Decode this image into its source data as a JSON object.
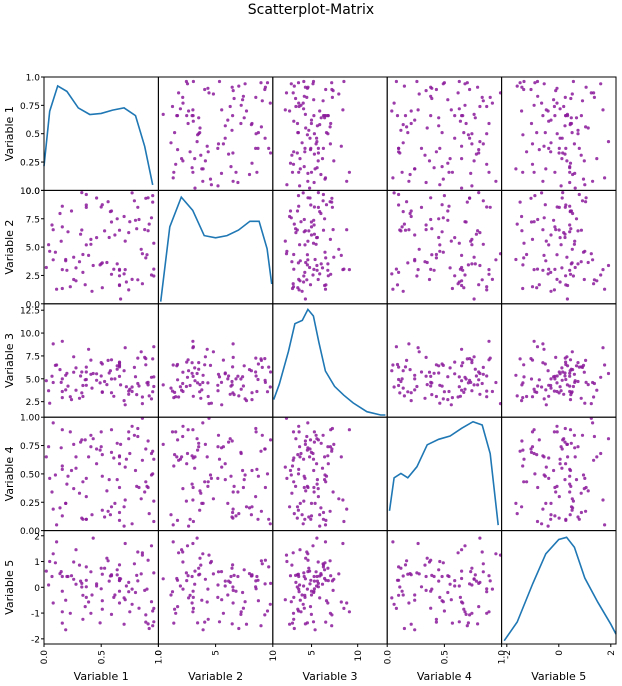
{
  "chart_data": {
    "type": "scatter",
    "title": "Scatterplot-Matrix",
    "variables": [
      "Variable 1",
      "Variable 2",
      "Variable 3",
      "Variable 4",
      "Variable 5"
    ],
    "ranges": [
      [
        0,
        1
      ],
      [
        0,
        10
      ],
      [
        0.8,
        13.2
      ],
      [
        0,
        1
      ],
      [
        -2.2,
        2.2
      ]
    ],
    "ticks": [
      {
        "values": [
          0.0,
          0.25,
          0.5,
          0.75,
          1.0
        ],
        "labels": [
          "0.0",
          "0.25",
          "0.5",
          "0.75",
          "1.0"
        ]
      },
      {
        "values": [
          0.0,
          2.5,
          5.0,
          7.5,
          10.0
        ],
        "labels": [
          "0.0",
          "2.5",
          "5.0",
          "7.5",
          "10.0"
        ]
      },
      {
        "values": [
          2.5,
          5.0,
          7.5,
          10.0,
          12.5
        ],
        "labels": [
          "2.5",
          "5.0",
          "7.5",
          "10.0",
          "12.5"
        ]
      },
      {
        "values": [
          0.0,
          0.25,
          0.5,
          0.75,
          1.0
        ],
        "labels": [
          "0.00",
          "0.25",
          "0.50",
          "0.75",
          "1.00"
        ]
      },
      {
        "values": [
          -2,
          -1,
          0,
          1,
          2
        ],
        "labels": [
          "-2",
          "-1",
          "0",
          "1",
          "2"
        ]
      }
    ],
    "x_ticks": [
      {
        "values": [
          0.0,
          0.5,
          1.0
        ],
        "labels": [
          "0.0",
          "0.5",
          "1.0"
        ]
      },
      {
        "values": [
          0,
          5,
          10
        ],
        "labels": [
          "0",
          "5",
          "10"
        ]
      },
      {
        "values": [
          5,
          10
        ],
        "labels": [
          "5",
          "10"
        ]
      },
      {
        "values": [
          0.0,
          0.5,
          1.0
        ],
        "labels": [
          "0.0",
          "0.5",
          "1.0"
        ]
      },
      {
        "values": [
          -2,
          0,
          2
        ],
        "labels": [
          "-2",
          "0",
          "2"
        ]
      }
    ],
    "diagonal": "kde",
    "kde": [
      [
        [
          0.0,
          0.22
        ],
        [
          0.05,
          0.72
        ],
        [
          0.12,
          0.95
        ],
        [
          0.2,
          0.9
        ],
        [
          0.3,
          0.75
        ],
        [
          0.4,
          0.69
        ],
        [
          0.5,
          0.7
        ],
        [
          0.6,
          0.73
        ],
        [
          0.7,
          0.75
        ],
        [
          0.8,
          0.68
        ],
        [
          0.88,
          0.4
        ],
        [
          0.95,
          0.05
        ]
      ],
      [
        [
          0.2,
          0.02
        ],
        [
          1.0,
          0.7
        ],
        [
          2.0,
          0.97
        ],
        [
          3.0,
          0.85
        ],
        [
          4.0,
          0.62
        ],
        [
          5.0,
          0.6
        ],
        [
          6.0,
          0.62
        ],
        [
          7.0,
          0.67
        ],
        [
          8.0,
          0.75
        ],
        [
          8.8,
          0.75
        ],
        [
          9.5,
          0.5
        ],
        [
          9.9,
          0.18
        ]
      ],
      [
        [
          0.9,
          0.16
        ],
        [
          1.5,
          0.3
        ],
        [
          2.5,
          0.6
        ],
        [
          3.2,
          0.85
        ],
        [
          4.0,
          0.88
        ],
        [
          4.6,
          0.98
        ],
        [
          5.2,
          0.92
        ],
        [
          5.8,
          0.68
        ],
        [
          6.5,
          0.42
        ],
        [
          7.5,
          0.28
        ],
        [
          8.5,
          0.2
        ],
        [
          9.5,
          0.13
        ],
        [
          11.0,
          0.05
        ],
        [
          12.5,
          0.02
        ],
        [
          13.0,
          0.02
        ]
      ],
      [
        [
          0.02,
          0.18
        ],
        [
          0.06,
          0.48
        ],
        [
          0.12,
          0.52
        ],
        [
          0.18,
          0.48
        ],
        [
          0.26,
          0.58
        ],
        [
          0.35,
          0.78
        ],
        [
          0.45,
          0.83
        ],
        [
          0.55,
          0.86
        ],
        [
          0.65,
          0.93
        ],
        [
          0.75,
          0.99
        ],
        [
          0.83,
          0.96
        ],
        [
          0.9,
          0.7
        ],
        [
          0.97,
          0.05
        ]
      ],
      [
        [
          -2.1,
          0.03
        ],
        [
          -1.6,
          0.2
        ],
        [
          -1.0,
          0.55
        ],
        [
          -0.5,
          0.82
        ],
        [
          0.0,
          0.95
        ],
        [
          0.3,
          0.97
        ],
        [
          0.6,
          0.88
        ],
        [
          1.0,
          0.6
        ],
        [
          1.5,
          0.38
        ],
        [
          2.0,
          0.18
        ],
        [
          2.2,
          0.09
        ]
      ]
    ],
    "point_color": "#8b1a9b",
    "line_color": "#1f77b4",
    "n_points": 100,
    "points": [
      [
        0.41,
        5.25,
        5.49,
        0.84,
        0.6
      ],
      [
        0.9,
        4.33,
        4.55,
        0.39,
        -0.07
      ],
      [
        0.15,
        5.52,
        4.6,
        0.73,
        0.61
      ],
      [
        0.05,
        4.63,
        2.33,
        0.46,
        1.0
      ],
      [
        0.16,
        1.35,
        2.94,
        0.57,
        -1.39
      ],
      [
        0.42,
        1.1,
        3.98,
        0.14,
        -0.3
      ],
      [
        0.66,
        2.47,
        6.82,
        0.59,
        0.26
      ],
      [
        0.34,
        4.35,
        3.06,
        0.43,
        -1.24
      ],
      [
        0.37,
        9.64,
        6.28,
        0.1,
        0.79
      ],
      [
        0.19,
        3.79,
        3.78,
        0.24,
        -0.5
      ],
      [
        0.67,
        0.42,
        4.33,
        0.76,
        0.33
      ],
      [
        0.26,
        4.11,
        7.41,
        0.76,
        0.31
      ],
      [
        0.77,
        2.15,
        3.61,
        0.92,
        -0.07
      ],
      [
        0.24,
        8.18,
        2.72,
        0.53,
        0.45
      ],
      [
        0.14,
        7.96,
        6.01,
        0.2,
        0.53
      ],
      [
        0.91,
        6.45,
        4.33,
        0.79,
        -1.42
      ],
      [
        0.75,
        7.24,
        3.86,
        0.68,
        -0.95
      ],
      [
        0.36,
        1.68,
        4.89,
        0.8,
        -0.75
      ],
      [
        0.51,
        8.74,
        6.62,
        0.48,
        -0.52
      ],
      [
        0.39,
        4.27,
        8.23,
        0.65,
        -0.57
      ],
      [
        0.89,
        9.3,
        7.21,
        0.72,
        -1.07
      ],
      [
        0.04,
        5.21,
        3.7,
        0.74,
        0.09
      ],
      [
        0.64,
        7.5,
        6.42,
        0.45,
        0.68
      ],
      [
        0.26,
        2.14,
        5.72,
        0.37,
        0.98
      ],
      [
        0.5,
        8.54,
        5.31,
        0.87,
        -0.06
      ],
      [
        0.32,
        6.14,
        5.31,
        0.78,
        0.24
      ],
      [
        0.66,
        3.03,
        5.26,
        0.38,
        -0.15
      ],
      [
        0.08,
        3.88,
        4.59,
        0.95,
        1.3
      ],
      [
        0.59,
        8.18,
        3.48,
        0.21,
        0.49
      ],
      [
        0.49,
        3.43,
        4.55,
        0.71,
        -1.38
      ],
      [
        0.16,
        3.02,
        9.1,
        0.89,
        -0.95
      ],
      [
        0.66,
        2.95,
        6.76,
        0.66,
        -0.61
      ],
      [
        0.95,
        9.54,
        3.59,
        0.5,
        -0.92
      ],
      [
        0.89,
        4.05,
        6.53,
        0.43,
        -1.35
      ],
      [
        0.11,
        1.29,
        6.51,
        0.05,
        1.76
      ],
      [
        0.59,
        7.21,
        4.98,
        0.69,
        -1.05
      ],
      [
        0.88,
        6.54,
        7.34,
        0.34,
        -0.12
      ],
      [
        0.28,
        2.03,
        3.75,
        0.65,
        1.46
      ],
      [
        0.51,
        1.42,
        3.51,
        0.67,
        -0.85
      ],
      [
        0.59,
        2.6,
        7.08,
        0.89,
        0.45
      ],
      [
        0.37,
        5.19,
        4.29,
        0.46,
        -0.39
      ],
      [
        0.64,
        3.52,
        6.05,
        0.77,
        0.48
      ],
      [
        0.23,
        1.51,
        3.04,
        0.87,
        -1.01
      ],
      [
        0.96,
        2.45,
        4.16,
        0.26,
        0.56
      ],
      [
        0.83,
        7.43,
        4.21,
        0.38,
        -0.81
      ],
      [
        0.43,
        3.38,
        5.58,
        0.81,
        1.91
      ],
      [
        0.28,
        3.17,
        6.19,
        0.55,
        0.12
      ],
      [
        0.33,
        6.51,
        3.46,
        0.11,
        0.01
      ],
      [
        0.08,
        6.53,
        8.81,
        0.19,
        -0.61
      ],
      [
        0.72,
        1.92,
        4.14,
        0.63,
        0.05
      ],
      [
        0.51,
        3.61,
        3.58,
        0.18,
        0.51
      ],
      [
        0.85,
        4.81,
        7.95,
        0.28,
        0.52
      ],
      [
        0.74,
        6.28,
        3.3,
        0.81,
        0.19
      ],
      [
        0.5,
        3.52,
        6.77,
        0.74,
        0.74
      ],
      [
        0.96,
        3.06,
        8.51,
        0.08,
        -0.82
      ],
      [
        0.8,
        7.36,
        5.23,
        0.53,
        -0.2
      ],
      [
        0.2,
        2.95,
        5.6,
        0.41,
        0.42
      ],
      [
        0.86,
        1.77,
        3.01,
        0.62,
        1.34
      ],
      [
        0.33,
        9.81,
        5.74,
        0.8,
        0.15
      ],
      [
        0.58,
        8.13,
        5.88,
        0.14,
        0.44
      ],
      [
        0.21,
        6.35,
        4.2,
        0.48,
        0.42
      ],
      [
        0.92,
        7.03,
        3.13,
        0.15,
        -1.6
      ],
      [
        0.1,
        4.55,
        6.46,
        0.49,
        0.95
      ],
      [
        0.46,
        5.84,
        5.55,
        0.59,
        0.05
      ],
      [
        0.82,
        8.51,
        7.26,
        0.9,
        0.25
      ],
      [
        0.7,
        7.7,
        2.62,
        0.21,
        -1.43
      ],
      [
        0.61,
        3.05,
        3.08,
        0.64,
        -0.39
      ],
      [
        0.66,
        1.61,
        6.42,
        0.65,
        0.34
      ],
      [
        0.81,
        6.62,
        3.27,
        0.39,
        0.46
      ],
      [
        0.79,
        9.08,
        6.25,
        0.84,
        0.91
      ],
      [
        0.91,
        9.35,
        4.61,
        0.38,
        1.05
      ],
      [
        0.37,
        8.5,
        5.74,
        0.3,
        0.02
      ],
      [
        0.96,
        5.34,
        5.21,
        0.63,
        -1.34
      ],
      [
        0.94,
        7.58,
        2.8,
        0.49,
        -0.56
      ],
      [
        0.94,
        2.54,
        5.16,
        0.68,
        1.61
      ],
      [
        0.46,
        9.33,
        4.83,
        0.72,
        0.13
      ],
      [
        0.07,
        6.95,
        5.28,
        0.34,
        0.42
      ],
      [
        0.77,
        9.78,
        4.1,
        0.06,
        -0.66
      ],
      [
        0.55,
        3.64,
        4.37,
        0.35,
        1.13
      ],
      [
        0.74,
        1.23,
        3.65,
        0.87,
        -0.17
      ],
      [
        0.41,
        5.68,
        7.04,
        0.74,
        -1.01
      ],
      [
        0.66,
        6.49,
        6.3,
        0.16,
        0.87
      ],
      [
        0.31,
        3.71,
        2.87,
        0.33,
        0.86
      ],
      [
        0.71,
        3.02,
        8.4,
        0.27,
        1.7
      ],
      [
        0.19,
        3.91,
        5.38,
        0.24,
        -1.65
      ],
      [
        0.34,
        2.77,
        4.27,
        0.1,
        -0.31
      ],
      [
        0.16,
        8.61,
        3.61,
        0.54,
        0.42
      ],
      [
        0.95,
        8.97,
        7.18,
        0.7,
        -1.49
      ],
      [
        0.02,
        3.2,
        4.79,
        0.65,
        0.63
      ],
      [
        0.16,
        6.78,
        4.99,
        0.13,
        -0.15
      ],
      [
        0.66,
        1.67,
        6.56,
        0.09,
        0.27
      ],
      [
        0.53,
        6.43,
        4.7,
        0.12,
        0.74
      ],
      [
        0.71,
        5.53,
        2.16,
        0.56,
        -0.48
      ],
      [
        0.56,
        9.0,
        7.01,
        0.17,
        1.03
      ],
      [
        0.62,
        6.07,
        4.99,
        0.24,
        -0.3
      ],
      [
        0.82,
        2.12,
        4.49,
        0.83,
        1.37
      ],
      [
        0.57,
        5.85,
        5.63,
        0.45,
        0.24
      ],
      [
        0.86,
        4.42,
        2.29,
        0.99,
        1.25
      ],
      [
        0.7,
        2.64,
        5.88,
        0.04,
        -0.41
      ],
      [
        0.37,
        8.71,
        4.92,
        0.1,
        0.27
      ]
    ]
  }
}
